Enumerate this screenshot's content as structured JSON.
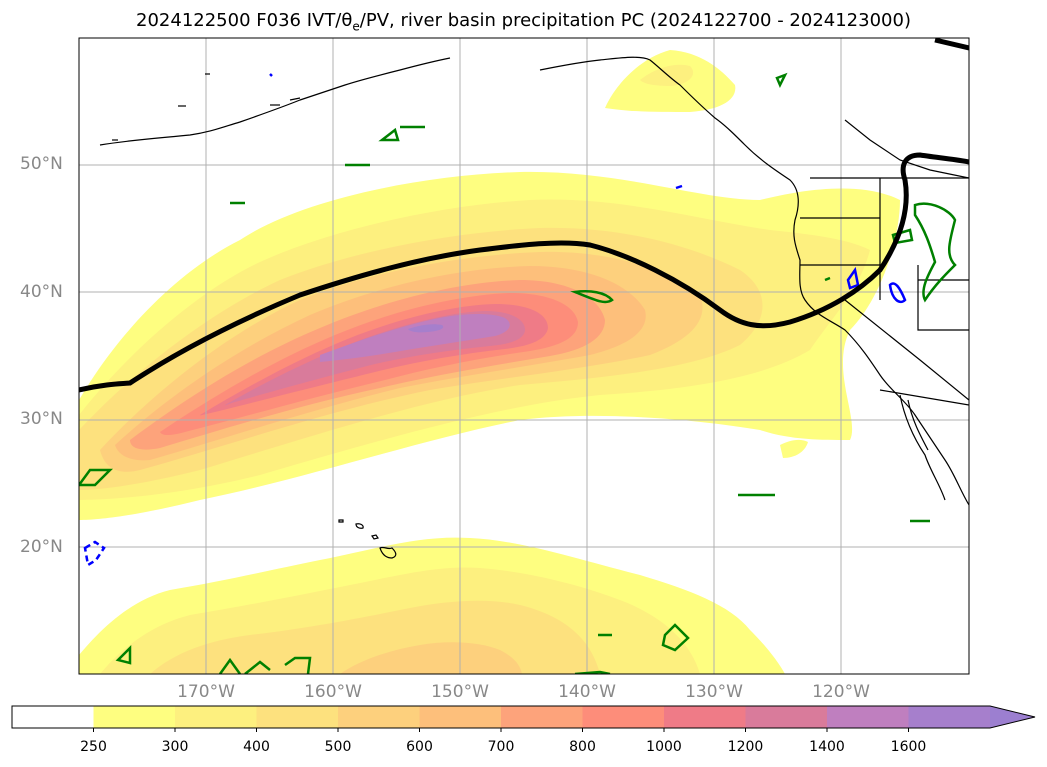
{
  "title": {
    "prefix": "2024122500 F036 IVT/",
    "theta": "θ",
    "theta_sub": "e",
    "suffix": "/PV, river basin precipitation PC (2024122700 - 2024123000)"
  },
  "map": {
    "lat_labels": [
      "50°N",
      "40°N",
      "30°N",
      "20°N"
    ],
    "lon_labels": [
      "170°W",
      "160°W",
      "150°W",
      "140°W",
      "130°W",
      "120°W"
    ],
    "colors": {
      "ivt_250": "#fefe80",
      "ivt_300": "#fdf07f",
      "ivt_400": "#fde17e",
      "ivt_500": "#fdd07d",
      "ivt_600": "#fdbf7b",
      "ivt_700": "#fda37b",
      "ivt_800": "#fd8d7a",
      "ivt_1000": "#ef7b87",
      "ivt_1200": "#d97b9b",
      "ivt_1400": "#bf7fbf",
      "ivt_1600": "#a67fcc",
      "pv_contour": "#000000",
      "theta_pos": "#008000",
      "theta_neg": "#0000ff",
      "coast": "#000000",
      "grid": "#b0b0b0"
    }
  },
  "colorbar": {
    "ticks": [
      "250",
      "300",
      "400",
      "500",
      "600",
      "700",
      "800",
      "1000",
      "1200",
      "1400",
      "1600"
    ],
    "colors": [
      "#ffffff",
      "#fefe80",
      "#fdf07f",
      "#fde17e",
      "#fdd07d",
      "#fdbf7b",
      "#fda37b",
      "#fd8d7a",
      "#ef7b87",
      "#d97b9b",
      "#bf7fbf",
      "#a67fcc",
      "#9c7fd0"
    ]
  }
}
